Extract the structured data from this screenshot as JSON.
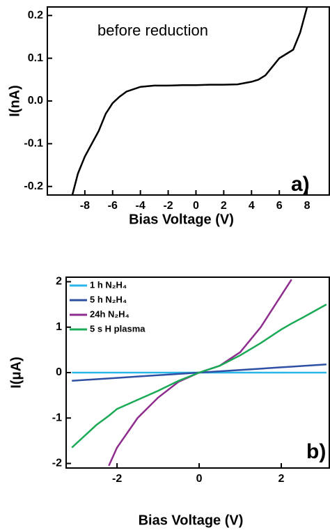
{
  "chart_data": [
    {
      "type": "line",
      "xlabel": "Bias Voltage (V)",
      "ylabel": "I(nA)",
      "annotations": [
        "before reduction",
        "a)"
      ],
      "xlim": [
        -10.7,
        9.6
      ],
      "ylim": [
        -0.22,
        0.22
      ],
      "xticks": [
        -8,
        -6,
        -4,
        -2,
        0,
        2,
        4,
        6,
        8
      ],
      "yticks": [
        -0.2,
        -0.1,
        {
          "value": 0,
          "label": "0.0"
        },
        0.1,
        0.2
      ],
      "x": [
        -8.9,
        -8.5,
        -8,
        -7.5,
        -7,
        -6.5,
        -6,
        -5.5,
        -5,
        -4,
        -3,
        -2,
        -1,
        0,
        1,
        2,
        3,
        4,
        4.5,
        5,
        5.5,
        6,
        6.5,
        7,
        7.5,
        8
      ],
      "series": [
        {
          "color": "#000000",
          "values": [
            -0.22,
            -0.17,
            -0.13,
            -0.1,
            -0.07,
            -0.03,
            -0.005,
            0.01,
            0.022,
            0.033,
            0.036,
            0.036,
            0.037,
            0.037,
            0.038,
            0.038,
            0.039,
            0.045,
            0.05,
            0.06,
            0.08,
            0.1,
            0.11,
            0.12,
            0.16,
            0.22
          ]
        }
      ]
    },
    {
      "type": "line",
      "xlabel": "Bias Voltage (V)",
      "ylabel": "I(μA)",
      "annotations": [
        "b)"
      ],
      "xlim": [
        -3.24,
        3.17
      ],
      "ylim": [
        -2.1,
        2.1
      ],
      "xticks": [
        -2,
        0,
        2
      ],
      "yticks": [
        -2,
        -1,
        0,
        1,
        2
      ],
      "x": [
        -3.1,
        -2.5,
        -2.2,
        -2,
        -1.5,
        -1,
        -0.5,
        0,
        0.5,
        1,
        1.5,
        2,
        2.25,
        2.5,
        3.1
      ],
      "series": [
        {
          "name": "1 h N₂H₄",
          "color": "#29b6e8",
          "values": [
            0,
            0,
            0,
            0,
            0,
            0,
            0,
            0,
            0,
            0,
            0,
            0,
            0,
            0,
            0
          ]
        },
        {
          "name": "5 h N₂H₄",
          "color": "#2e4fa3",
          "values": [
            -0.18,
            -0.145,
            -0.128,
            -0.116,
            -0.087,
            -0.058,
            -0.029,
            0,
            0.029,
            0.058,
            0.087,
            0.116,
            0.13,
            0.145,
            0.18
          ]
        },
        {
          "name": "24h N₂H₄",
          "color": "#8e2d8e",
          "values": [
            null,
            null,
            -2.05,
            -1.65,
            -1.0,
            -0.55,
            -0.2,
            0,
            0.15,
            0.45,
            1.0,
            1.7,
            2.05,
            null,
            null
          ]
        },
        {
          "name": "5 s H plasma",
          "color": "#1aaa55",
          "values": [
            -1.65,
            -1.15,
            -0.95,
            -0.8,
            -0.6,
            -0.4,
            -0.18,
            0,
            0.15,
            0.38,
            0.65,
            0.95,
            1.08,
            1.2,
            1.5
          ]
        }
      ]
    }
  ]
}
